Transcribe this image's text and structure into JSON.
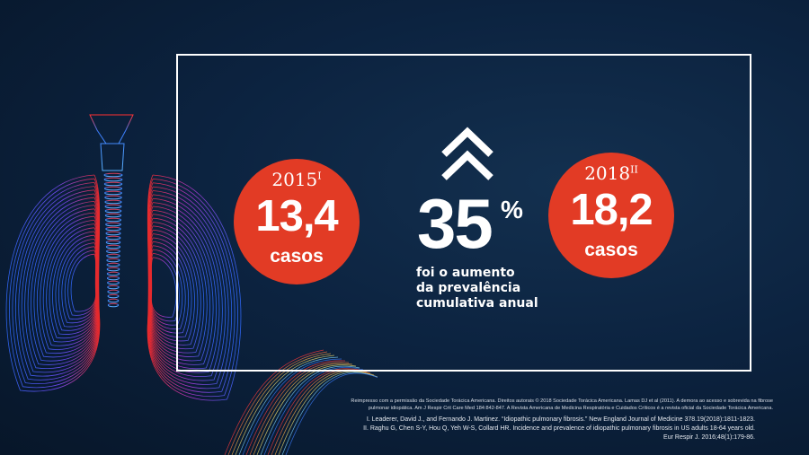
{
  "left_stat": {
    "year": "2015",
    "year_sup": "I",
    "value": "13,4",
    "unit": "casos"
  },
  "right_stat": {
    "year": "2018",
    "year_sup": "II",
    "value": "18,2",
    "unit": "casos"
  },
  "center": {
    "percent": "35",
    "percent_sign": "%",
    "description_lines": [
      "foi o aumento",
      "da prevalência",
      "cumulativa anual"
    ]
  },
  "footnotes": {
    "reprint_lines": [
      "Reimpresso com a permissão da Sociedade Torácica Americana. Direitos autorais © 2018 Sociedade Torácica Americana. Lamas DJ et al (2011). A demora ao acesso e sobrevida na fibrose",
      "pulmonar idiopática. Am J Respir Crit Care Med 184:842-847. A Revista Americana de Medicina Respiratória e Cuidados Críticos é a revista oficial da Sociedade Torácica Americana."
    ],
    "reference_lines": [
      "I. Leaderer, David J., and Fernando J. Martinez. “Idiopathic pulmonary fibrosis.” New England Journal of Medicine 378.19(2018):1811-1823.",
      "II. Raghu G, Chen S-Y, Hou Q, Yeh W-S, Collard HR. Incidence and prevalence of idiopathic pulmonary fibrosis in US adults 18-64 years old.",
      "Eur Respir J. 2016;48(1):179-86."
    ]
  },
  "colors": {
    "background": "#0c2340",
    "accent_red": "#e23b25",
    "lung_red": "#ff2b2b",
    "lung_blue": "#2f6bff",
    "text": "#ffffff"
  },
  "icons": {
    "increase": "double-chevron-up-icon",
    "illustration": "lungs-illustration"
  }
}
